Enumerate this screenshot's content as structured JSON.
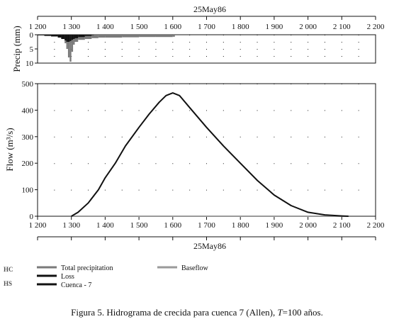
{
  "chart_data": [
    {
      "type": "bar",
      "panel": "precipitation",
      "ylabel": "Precip (mm)",
      "ylim": [
        10,
        0
      ],
      "y_inverted": true,
      "yticks": [
        "0",
        "5",
        "10"
      ],
      "xlim": [
        1200,
        2200
      ],
      "xticks": [
        "1 200",
        "1 300",
        "1 400",
        "1 500",
        "1 600",
        "1 700",
        "1 800",
        "1 900",
        "2 000",
        "2 100",
        "2 200"
      ],
      "top_label": "25May86",
      "grid": "dotted",
      "series": [
        {
          "name": "Total precipitation",
          "color": "#7a7a7a",
          "x": [
            1200,
            1220,
            1240,
            1260,
            1270,
            1280,
            1285,
            1290,
            1295,
            1300,
            1305,
            1310,
            1320,
            1340,
            1360,
            1380,
            1400,
            1450,
            1500,
            1550,
            1600
          ],
          "values": [
            0.2,
            0.4,
            0.6,
            1.0,
            1.5,
            3.0,
            5.0,
            8.0,
            9.5,
            6.0,
            3.5,
            2.5,
            1.8,
            1.5,
            1.2,
            1.0,
            1.0,
            0.9,
            0.8,
            0.8,
            0.7
          ]
        },
        {
          "name": "Loss",
          "color": "#111111",
          "x": [
            1200,
            1220,
            1240,
            1260,
            1270,
            1280,
            1285,
            1290,
            1295,
            1300,
            1305,
            1310,
            1320,
            1340,
            1360
          ],
          "values": [
            0.2,
            0.4,
            0.6,
            1.0,
            1.5,
            2.0,
            2.5,
            2.5,
            2.2,
            1.8,
            1.5,
            1.2,
            0.8,
            0.4,
            0.1
          ]
        }
      ]
    },
    {
      "type": "line",
      "panel": "flow",
      "ylabel": "Flow (m³/s)",
      "ylim": [
        0,
        500
      ],
      "yticks": [
        "0",
        "100",
        "200",
        "300",
        "400",
        "500"
      ],
      "xlim": [
        1200,
        2200
      ],
      "xticks": [
        "1 200",
        "1 300",
        "1 400",
        "1 500",
        "1 600",
        "1 700",
        "1 800",
        "1 900",
        "2 000",
        "2 100",
        "2 200"
      ],
      "bottom_label": "25May86",
      "grid": "dotted",
      "series": [
        {
          "name": "Cuenca - 7",
          "color": "#111111",
          "x": [
            1300,
            1320,
            1350,
            1380,
            1400,
            1430,
            1460,
            1500,
            1530,
            1560,
            1580,
            1600,
            1620,
            1650,
            1700,
            1750,
            1800,
            1850,
            1900,
            1950,
            2000,
            2050,
            2100,
            2120
          ],
          "values": [
            0,
            15,
            50,
            100,
            145,
            200,
            265,
            335,
            385,
            430,
            455,
            465,
            455,
            410,
            335,
            265,
            200,
            135,
            80,
            40,
            15,
            5,
            1,
            0
          ]
        },
        {
          "name": "Baseflow",
          "color": "#9a9a9a",
          "x": [
            1300,
            2120
          ],
          "values": [
            0,
            0
          ]
        }
      ]
    }
  ],
  "legend": {
    "items": [
      {
        "label": "Total precipitation",
        "color": "#7a7a7a"
      },
      {
        "label": "Loss",
        "color": "#111111"
      },
      {
        "label": "Cuenca - 7",
        "color": "#111111"
      },
      {
        "label": "Baseflow",
        "color": "#9a9a9a"
      }
    ],
    "corner_marks": [
      "HC",
      "HS"
    ]
  },
  "caption": {
    "prefix": "Figura 5. Hidrograma de crecida para cuenca 7 (Allen), ",
    "italic": "T",
    "suffix": "=100 años."
  }
}
